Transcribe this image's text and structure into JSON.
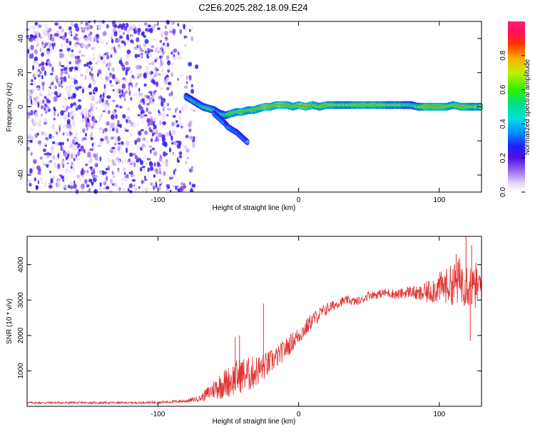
{
  "title": "C2E6.2025.282.18.09.E24",
  "chart_data": [
    {
      "type": "heatmap",
      "name": "spectrogram",
      "xlabel": "Height of straight line (km)",
      "ylabel": "Frequency (Hz)",
      "xlim": [
        -193,
        130
      ],
      "ylim": [
        -50,
        50
      ],
      "x_ticks": [
        -100,
        0,
        100
      ],
      "y_ticks": [
        -40,
        -20,
        0,
        20,
        40
      ],
      "x_tick_labels": [
        "-100",
        "0",
        "100"
      ],
      "y_tick_labels": [
        "-40",
        "-20",
        "0",
        "20",
        "40"
      ],
      "colorbar": {
        "label": "Normalized spectral amplitude",
        "range": [
          0,
          1
        ],
        "ticks": [
          0,
          0.2,
          0.4,
          0.6,
          0.8
        ],
        "tick_labels": [
          "0.0",
          "0.2",
          "0.4",
          "0.6",
          "0.8"
        ],
        "colormap": "rainbow"
      },
      "noise_region": {
        "x_range": [
          -193,
          -72
        ],
        "y_range": [
          -50,
          50
        ],
        "amplitude_range": [
          0.0,
          0.25
        ]
      },
      "signal_track": [
        {
          "x": -80,
          "y": 6,
          "amp": 0.35
        },
        {
          "x": -76,
          "y": 4,
          "amp": 0.55
        },
        {
          "x": -72,
          "y": 2,
          "amp": 0.5
        },
        {
          "x": -68,
          "y": 0,
          "amp": 0.6
        },
        {
          "x": -64,
          "y": -1,
          "amp": 0.7
        },
        {
          "x": -60,
          "y": -2,
          "amp": 0.6
        },
        {
          "x": -56,
          "y": -4,
          "amp": 0.55
        },
        {
          "x": -52,
          "y": -5,
          "amp": 0.65
        },
        {
          "x": -48,
          "y": -4,
          "amp": 0.8
        },
        {
          "x": -44,
          "y": -3,
          "amp": 0.75
        },
        {
          "x": -40,
          "y": -3,
          "amp": 0.85
        },
        {
          "x": -36,
          "y": -2,
          "amp": 0.7
        },
        {
          "x": -32,
          "y": -2,
          "amp": 0.8
        },
        {
          "x": -28,
          "y": -1,
          "amp": 0.75
        },
        {
          "x": -24,
          "y": 0,
          "amp": 0.9
        },
        {
          "x": -20,
          "y": 0,
          "amp": 0.85
        },
        {
          "x": -16,
          "y": 1,
          "amp": 0.8
        },
        {
          "x": -12,
          "y": 1,
          "amp": 0.9
        },
        {
          "x": -8,
          "y": 1,
          "amp": 0.85
        },
        {
          "x": -4,
          "y": 0,
          "amp": 0.8
        },
        {
          "x": 0,
          "y": 1,
          "amp": 0.85
        },
        {
          "x": 5,
          "y": 0,
          "amp": 0.9
        },
        {
          "x": 10,
          "y": 1,
          "amp": 0.8
        },
        {
          "x": 15,
          "y": 0,
          "amp": 0.75
        },
        {
          "x": 20,
          "y": 1,
          "amp": 0.8
        },
        {
          "x": 25,
          "y": 1,
          "amp": 0.75
        },
        {
          "x": 30,
          "y": 1,
          "amp": 0.7
        },
        {
          "x": 35,
          "y": 1,
          "amp": 0.7
        },
        {
          "x": 40,
          "y": 1,
          "amp": 0.75
        },
        {
          "x": 45,
          "y": 1,
          "amp": 0.8
        },
        {
          "x": 50,
          "y": 1,
          "amp": 0.75
        },
        {
          "x": 55,
          "y": 1,
          "amp": 0.8
        },
        {
          "x": 60,
          "y": 1,
          "amp": 0.75
        },
        {
          "x": 65,
          "y": 1,
          "amp": 0.7
        },
        {
          "x": 70,
          "y": 1,
          "amp": 0.7
        },
        {
          "x": 75,
          "y": 1,
          "amp": 0.65
        },
        {
          "x": 80,
          "y": 1,
          "amp": 0.6
        },
        {
          "x": 85,
          "y": 0,
          "amp": 0.7
        },
        {
          "x": 90,
          "y": 0,
          "amp": 0.85
        },
        {
          "x": 95,
          "y": 0,
          "amp": 0.8
        },
        {
          "x": 100,
          "y": 0,
          "amp": 0.85
        },
        {
          "x": 105,
          "y": 0,
          "amp": 0.8
        },
        {
          "x": 110,
          "y": 1,
          "amp": 0.75
        },
        {
          "x": 115,
          "y": 0,
          "amp": 0.85
        },
        {
          "x": 120,
          "y": 0,
          "amp": 0.8
        },
        {
          "x": 125,
          "y": 0,
          "amp": 0.75
        },
        {
          "x": 130,
          "y": 0,
          "amp": 0.7
        }
      ],
      "branch_track": [
        {
          "x": -60,
          "y": -4,
          "amp": 0.45
        },
        {
          "x": -56,
          "y": -7,
          "amp": 0.45
        },
        {
          "x": -52,
          "y": -10,
          "amp": 0.5
        },
        {
          "x": -50,
          "y": -12,
          "amp": 0.4
        },
        {
          "x": -44,
          "y": -15,
          "amp": 0.2
        },
        {
          "x": -40,
          "y": -18,
          "amp": 0.2
        },
        {
          "x": -36,
          "y": -21,
          "amp": 0.15
        }
      ]
    },
    {
      "type": "line",
      "name": "snr",
      "xlabel": "Height of straight line (km)",
      "ylabel": "SNR (10 * v/v)",
      "xlim": [
        -193,
        130
      ],
      "ylim": [
        0,
        4800
      ],
      "x_ticks": [
        -100,
        0,
        100
      ],
      "y_ticks": [
        1000,
        2000,
        3000,
        4000
      ],
      "x_tick_labels": [
        "-100",
        "0",
        "100"
      ],
      "y_tick_labels": [
        "1000",
        "2000",
        "3000",
        "4000"
      ],
      "color": "#e03030",
      "series": [
        {
          "name": "SNR",
          "x": [
            -193,
            -180,
            -160,
            -140,
            -120,
            -100,
            -80,
            -70,
            -65,
            -60,
            -55,
            -50,
            -45,
            -40,
            -35,
            -30,
            -25,
            -20,
            -15,
            -10,
            -5,
            0,
            5,
            10,
            15,
            20,
            25,
            30,
            35,
            40,
            45,
            50,
            55,
            60,
            65,
            70,
            75,
            80,
            85,
            90,
            95,
            100,
            105,
            110,
            115,
            120,
            125,
            130
          ],
          "y": [
            100,
            100,
            100,
            100,
            100,
            110,
            150,
            220,
            350,
            500,
            600,
            700,
            800,
            900,
            900,
            1000,
            1100,
            1250,
            1400,
            1600,
            1800,
            2000,
            2200,
            2450,
            2600,
            2750,
            2850,
            2950,
            3000,
            2950,
            3000,
            3150,
            3150,
            3200,
            3200,
            3150,
            3200,
            3250,
            3150,
            3200,
            3300,
            3350,
            3400,
            3450,
            3550,
            3500,
            3300,
            3450
          ],
          "noise": [
            30,
            30,
            30,
            30,
            30,
            35,
            50,
            80,
            200,
            300,
            400,
            450,
            500,
            500,
            500,
            450,
            400,
            350,
            300,
            300,
            280,
            250,
            250,
            220,
            200,
            180,
            150,
            130,
            120,
            120,
            120,
            120,
            120,
            130,
            140,
            150,
            160,
            180,
            220,
            300,
            400,
            450,
            500,
            600,
            700,
            700,
            600,
            500
          ]
        }
      ],
      "spikes": [
        {
          "x": -45,
          "y": 1950
        },
        {
          "x": -42,
          "y": 2000
        },
        {
          "x": -25,
          "y": 2900
        },
        {
          "x": 112,
          "y": 4300
        },
        {
          "x": 119,
          "y": 4800
        },
        {
          "x": 123,
          "y": 4550
        },
        {
          "x": 122,
          "y": 1850
        },
        {
          "x": 126,
          "y": 4050
        }
      ]
    }
  ]
}
